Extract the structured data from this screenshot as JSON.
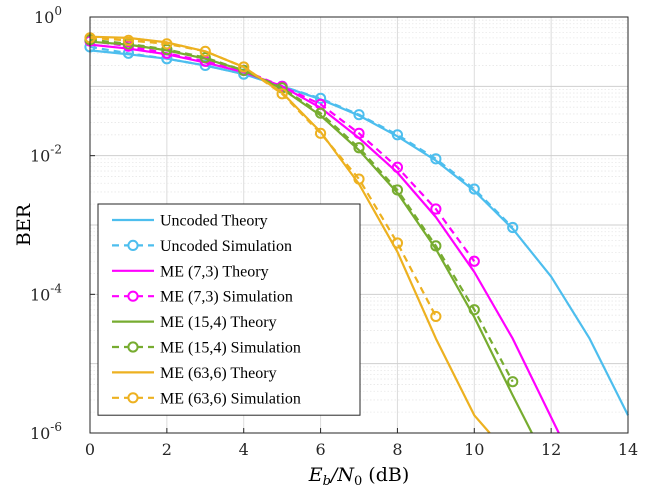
{
  "chart_data": {
    "type": "line",
    "xlabel_main": "E",
    "xlabel_sub1": "b",
    "xlabel_mid": "/N",
    "xlabel_sub2": "0",
    "xlabel_unit": " (dB)",
    "ylabel": "BER",
    "xlim": [
      0,
      14
    ],
    "ylim": [
      1e-06,
      1
    ],
    "yscale": "log",
    "grid": true,
    "legend_position": "bottom-left",
    "x_ticks": [
      "0",
      "2",
      "4",
      "6",
      "8",
      "10",
      "12",
      "14"
    ],
    "y_ticks": [
      {
        "base": "10",
        "exp": "0"
      },
      {
        "base": "10",
        "exp": "-2"
      },
      {
        "base": "10",
        "exp": "-4"
      },
      {
        "base": "10",
        "exp": "-6"
      }
    ],
    "series": [
      {
        "name": "Uncoded Theory",
        "style": "solid",
        "color": "#4DBEEE",
        "x": [
          0,
          1,
          2,
          3,
          4,
          5,
          6,
          7,
          8,
          9,
          10,
          11,
          12,
          13,
          14
        ],
        "y": [
          0.33,
          0.29,
          0.25,
          0.2,
          0.15,
          0.1,
          0.065,
          0.038,
          0.019,
          0.0085,
          0.0031,
          0.00088,
          0.00018,
          2.3e-05,
          1.8e-06
        ]
      },
      {
        "name": "Uncoded Simulation",
        "style": "dashed-marker",
        "color": "#4DBEEE",
        "x": [
          0,
          1,
          2,
          3,
          4,
          5,
          6,
          7,
          8,
          9,
          10,
          11
        ],
        "y": [
          0.37,
          0.3,
          0.25,
          0.2,
          0.15,
          0.1,
          0.067,
          0.039,
          0.02,
          0.009,
          0.0033,
          0.00092
        ]
      },
      {
        "name": "ME (7,3) Theory",
        "style": "solid",
        "color": "#FF00FF",
        "x": [
          0,
          1,
          2,
          3,
          4,
          5,
          6,
          7,
          8,
          9,
          10,
          11,
          12.2
        ],
        "y": [
          0.4,
          0.35,
          0.29,
          0.22,
          0.16,
          0.1,
          0.049,
          0.018,
          0.0057,
          0.0013,
          0.00021,
          2.3e-05,
          1e-06
        ]
      },
      {
        "name": "ME (7,3) Simulation",
        "style": "dashed-marker",
        "color": "#FF00FF",
        "x": [
          0,
          1,
          2,
          3,
          4,
          5,
          6,
          7,
          8,
          9,
          10
        ],
        "y": [
          0.45,
          0.38,
          0.3,
          0.23,
          0.17,
          0.1,
          0.055,
          0.021,
          0.0068,
          0.0017,
          0.0003
        ]
      },
      {
        "name": "ME (15,4) Theory",
        "style": "solid",
        "color": "#77AC30",
        "x": [
          0,
          1,
          2,
          3,
          4,
          5,
          6,
          7,
          8,
          9,
          10,
          11,
          11.5
        ],
        "y": [
          0.44,
          0.4,
          0.33,
          0.25,
          0.17,
          0.092,
          0.038,
          0.012,
          0.0029,
          0.00045,
          4.7e-05,
          3.5e-06,
          1e-06
        ]
      },
      {
        "name": "ME (15,4) Simulation",
        "style": "dashed-marker",
        "color": "#77AC30",
        "x": [
          0,
          1,
          2,
          3,
          4,
          5,
          6,
          7,
          8,
          9,
          10,
          11
        ],
        "y": [
          0.47,
          0.41,
          0.34,
          0.26,
          0.17,
          0.095,
          0.041,
          0.013,
          0.0032,
          0.0005,
          6e-05,
          5.5e-06
        ]
      },
      {
        "name": "ME (63,6) Theory",
        "style": "solid",
        "color": "#EDB120",
        "x": [
          0,
          1,
          2,
          3,
          4,
          5,
          6,
          7,
          8,
          9,
          10,
          10.4
        ],
        "y": [
          0.52,
          0.5,
          0.43,
          0.32,
          0.19,
          0.081,
          0.022,
          0.0039,
          0.00041,
          2.3e-05,
          1.8e-06,
          1e-06
        ]
      },
      {
        "name": "ME (63,6) Simulation",
        "style": "dashed-marker",
        "color": "#EDB120",
        "x": [
          0,
          1,
          2,
          3,
          4,
          5,
          6,
          7,
          8,
          9
        ],
        "y": [
          0.5,
          0.46,
          0.41,
          0.32,
          0.19,
          0.078,
          0.021,
          0.0046,
          0.00055,
          4.8e-05
        ]
      }
    ]
  }
}
